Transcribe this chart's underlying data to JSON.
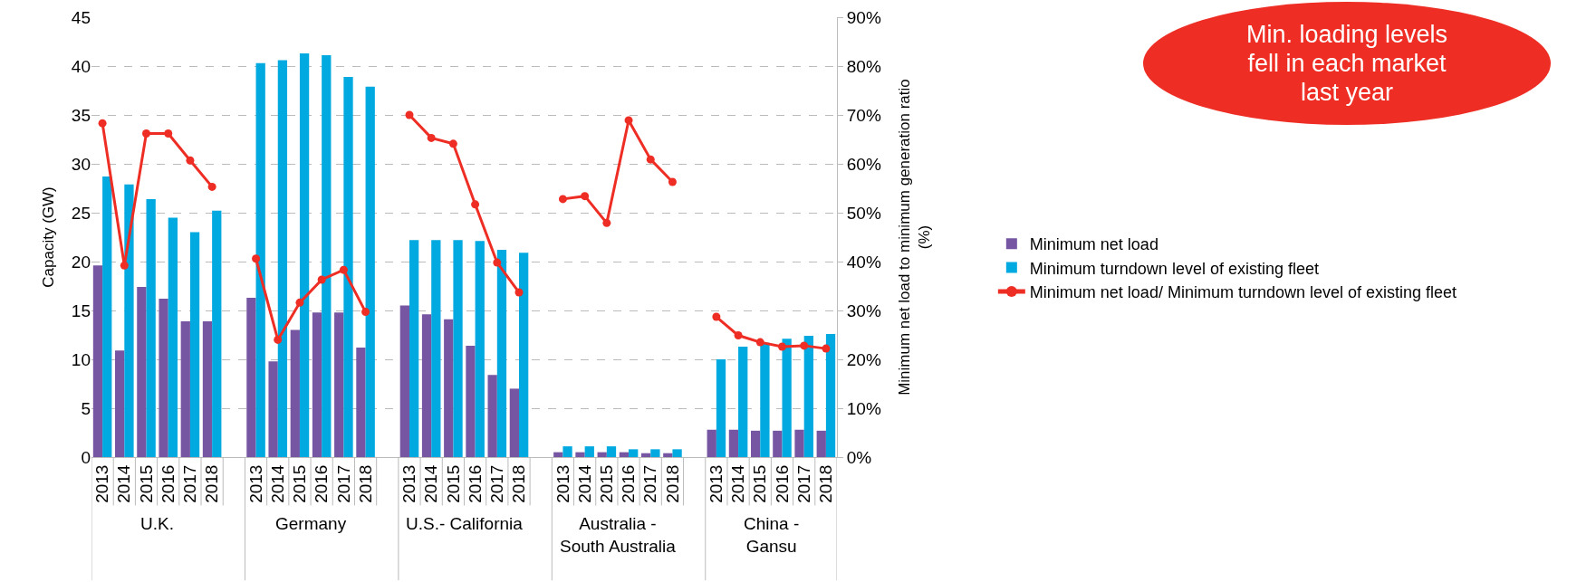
{
  "chart_data": {
    "type": "bar",
    "categories": [
      "2013",
      "2014",
      "2015",
      "2016",
      "2017",
      "2018",
      null,
      "2013",
      "2014",
      "2015",
      "2016",
      "2017",
      "2018",
      null,
      "2013",
      "2014",
      "2015",
      "2016",
      "2017",
      "2018",
      null,
      "2013",
      "2014",
      "2015",
      "2016",
      "2017",
      "2018",
      null,
      "2013",
      "2014",
      "2015",
      "2016",
      "2017",
      "2018"
    ],
    "series": [
      {
        "name": "Minimum net load",
        "color": "#7655a3",
        "values": [
          19.6,
          10.9,
          17.4,
          16.2,
          13.9,
          13.9,
          null,
          16.3,
          9.8,
          13.0,
          14.8,
          14.8,
          11.2,
          null,
          15.5,
          14.6,
          14.1,
          11.4,
          8.4,
          7.0,
          null,
          0.5,
          0.5,
          0.5,
          0.5,
          0.4,
          0.4,
          null,
          2.8,
          2.8,
          2.7,
          2.7,
          2.8,
          2.7
        ]
      },
      {
        "name": "Minimum turndown level of existing fleet",
        "color": "#00a9e0",
        "values": [
          28.7,
          27.9,
          26.4,
          24.5,
          23.0,
          25.2,
          null,
          40.3,
          40.6,
          41.3,
          41.1,
          38.9,
          37.9,
          null,
          22.2,
          22.2,
          22.2,
          22.1,
          21.2,
          20.9,
          null,
          1.1,
          1.1,
          1.1,
          0.8,
          0.8,
          0.8,
          null,
          10.0,
          11.3,
          11.7,
          12.1,
          12.4,
          12.6
        ]
      },
      {
        "name": "Minimum net load/ Minimum turndown level of existing fleet",
        "type": "line",
        "axis": "y2",
        "color": "#ee2e24",
        "marker": "circle",
        "line_style": "solid",
        "values": [
          68.3,
          39.2,
          66.2,
          66.2,
          60.7,
          55.3,
          null,
          40.6,
          24.0,
          31.6,
          36.3,
          38.3,
          29.7,
          null,
          70.0,
          65.3,
          64.1,
          51.7,
          39.8,
          33.7,
          null,
          52.8,
          53.4,
          47.9,
          68.9,
          60.9,
          56.3,
          null,
          28.7,
          24.9,
          23.5,
          22.6,
          22.8,
          22.2
        ]
      }
    ],
    "ylabel": "Capacity (GW)",
    "y2label": "Minimum net load to minimum generation ratio (%)",
    "ylim": [
      0,
      45
    ],
    "yticks": [
      0,
      5,
      10,
      15,
      20,
      25,
      30,
      35,
      40,
      45
    ],
    "y2lim": [
      0,
      90
    ],
    "y2ticks": [
      {
        "value": 0,
        "label": "0%"
      },
      {
        "value": 10,
        "label": "10%"
      },
      {
        "value": 20,
        "label": "20%"
      },
      {
        "value": 30,
        "label": "30%"
      },
      {
        "value": 40,
        "label": "40%"
      },
      {
        "value": 50,
        "label": "50%"
      },
      {
        "value": 60,
        "label": "60%"
      },
      {
        "value": 70,
        "label": "70%"
      },
      {
        "value": 80,
        "label": "80%"
      },
      {
        "value": 90,
        "label": "90%"
      }
    ],
    "grid": "y",
    "legend": "right",
    "annotations": [
      "U.K.",
      "Germany",
      "U.S.- California",
      "Australia - South Australia",
      "China - Gansu",
      "Min. loading levels fell in each market last year"
    ]
  }
}
